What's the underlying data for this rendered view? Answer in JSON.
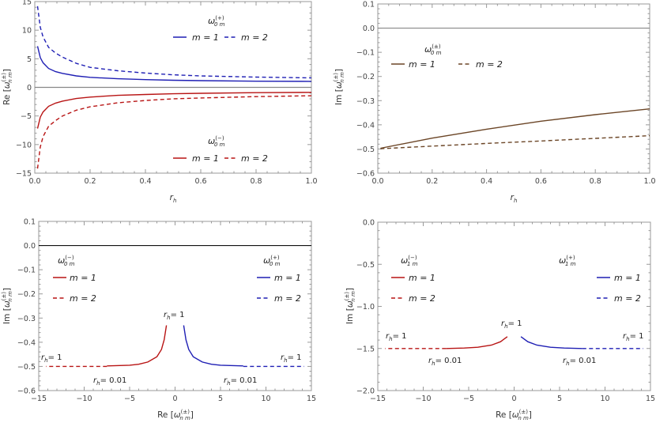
{
  "chart_data": [
    {
      "type": "line",
      "xlabel": {
        "base": "r",
        "sub": "h"
      },
      "ylabel": {
        "pre": "Re [",
        "base": "ω",
        "sup": "(±)",
        "sub": "n m",
        "post": "]"
      },
      "xlim": [
        0,
        1
      ],
      "ylim": [
        -15,
        15
      ],
      "xticks": [
        "0.0",
        "0.2",
        "0.4",
        "0.6",
        "0.8",
        "1.0"
      ],
      "yticks": [
        "−15",
        "−10",
        "−5",
        "0",
        "5",
        "10",
        "15"
      ],
      "zero_line": "#888888",
      "series": [
        {
          "name": "m = 1",
          "color": "#1f1fb4",
          "dashed": false,
          "x": [
            0.01,
            0.02,
            0.03,
            0.05,
            0.075,
            0.1,
            0.15,
            0.2,
            0.3,
            0.4,
            0.5,
            0.6,
            0.8,
            1.0
          ],
          "y": [
            7.2,
            5.2,
            4.3,
            3.3,
            2.75,
            2.45,
            2.0,
            1.75,
            1.5,
            1.35,
            1.25,
            1.17,
            1.08,
            1.05
          ]
        },
        {
          "name": "m = 2",
          "color": "#1f1fb4",
          "dashed": true,
          "x": [
            0.01,
            0.02,
            0.03,
            0.05,
            0.075,
            0.1,
            0.15,
            0.2,
            0.3,
            0.4,
            0.5,
            0.6,
            0.8,
            1.0
          ],
          "y": [
            14.2,
            10.5,
            8.8,
            7.0,
            6.0,
            5.3,
            4.2,
            3.5,
            2.9,
            2.5,
            2.2,
            2.0,
            1.8,
            1.66
          ]
        },
        {
          "name": "m = 1",
          "color": "#b81414",
          "dashed": false,
          "x": [
            0.01,
            0.02,
            0.03,
            0.05,
            0.075,
            0.1,
            0.15,
            0.2,
            0.3,
            0.4,
            0.5,
            0.6,
            0.8,
            1.0
          ],
          "y": [
            -7.2,
            -5.2,
            -4.3,
            -3.3,
            -2.75,
            -2.4,
            -1.95,
            -1.7,
            -1.4,
            -1.25,
            -1.12,
            -1.03,
            -0.93,
            -0.87
          ]
        },
        {
          "name": "m = 2",
          "color": "#b81414",
          "dashed": true,
          "x": [
            0.01,
            0.02,
            0.03,
            0.05,
            0.075,
            0.1,
            0.15,
            0.2,
            0.3,
            0.4,
            0.5,
            0.6,
            0.8,
            1.0
          ],
          "y": [
            -14.2,
            -10.4,
            -8.6,
            -6.8,
            -5.8,
            -5.0,
            -4.0,
            -3.4,
            -2.7,
            -2.3,
            -2.0,
            -1.85,
            -1.62,
            -1.47
          ]
        }
      ],
      "legends": [
        {
          "title": {
            "base": "ω",
            "sup": "(+)",
            "sub": "0 m"
          },
          "color": "#1f1fb4",
          "entries": [
            "m = 1",
            "m = 2"
          ]
        },
        {
          "title": {
            "base": "ω",
            "sup": "(−)",
            "sub": "0 m"
          },
          "color": "#b81414",
          "entries": [
            "m = 1",
            "m = 2"
          ]
        }
      ]
    },
    {
      "type": "line",
      "xlabel": {
        "base": "r",
        "sub": "h"
      },
      "ylabel": {
        "pre": "Im [",
        "base": "ω",
        "sup": "(±)",
        "sub": "n m",
        "post": "]"
      },
      "xlim": [
        0,
        1
      ],
      "ylim": [
        -0.6,
        0.1
      ],
      "xticks": [
        "0.0",
        "0.2",
        "0.4",
        "0.6",
        "0.8",
        "1.0"
      ],
      "yticks": [
        "−0.6",
        "−0.5",
        "−0.4",
        "−0.3",
        "−0.2",
        "−0.1",
        "0.0",
        "0.1"
      ],
      "zero_line": "#888888",
      "series": [
        {
          "name": "m = 1",
          "color": "#6b4526",
          "dashed": false,
          "x": [
            0.01,
            0.2,
            0.4,
            0.6,
            0.8,
            1.0
          ],
          "y": [
            -0.497,
            -0.455,
            -0.418,
            -0.385,
            -0.358,
            -0.334
          ]
        },
        {
          "name": "m = 2",
          "color": "#6b4526",
          "dashed": true,
          "x": [
            0.01,
            0.2,
            0.4,
            0.6,
            0.8,
            1.0
          ],
          "y": [
            -0.499,
            -0.488,
            -0.477,
            -0.467,
            -0.456,
            -0.445
          ]
        }
      ],
      "legends": [
        {
          "title": {
            "base": "ω",
            "sup": "(±)",
            "sub": "0 m"
          },
          "color": "#6b4526",
          "entries": [
            "m = 1",
            "m = 2"
          ]
        }
      ]
    },
    {
      "type": "line",
      "xlabel": {
        "pre": "Re [",
        "base": "ω",
        "sup": "(±)",
        "sub": "n m",
        "post": "]"
      },
      "ylabel": {
        "pre": "Im [",
        "base": "ω",
        "sup": "(±)",
        "sub": "n m",
        "post": "]"
      },
      "xlim": [
        -15,
        15
      ],
      "ylim": [
        -0.6,
        0.1
      ],
      "xticks": [
        "−15",
        "−10",
        "−5",
        "0",
        "5",
        "10",
        "15"
      ],
      "yticks": [
        "−0.6",
        "−0.5",
        "−0.4",
        "−0.3",
        "−0.2",
        "−0.1",
        "0.0",
        "0.1"
      ],
      "zero_line": "#111111",
      "series": [
        {
          "name": "m = 1",
          "color": "#b81414",
          "dashed": false,
          "x": [
            -0.95,
            -1.2,
            -1.5,
            -2,
            -3,
            -4,
            -5,
            -7.5
          ],
          "y": [
            -0.33,
            -0.39,
            -0.43,
            -0.46,
            -0.482,
            -0.491,
            -0.495,
            -0.498
          ]
        },
        {
          "name": "m = 2",
          "color": "#b81414",
          "dashed": true,
          "x": [
            -7.5,
            -14.2
          ],
          "y": [
            -0.5,
            -0.5
          ]
        },
        {
          "name": "m = 1",
          "color": "#1f1fb4",
          "dashed": false,
          "x": [
            0.95,
            1.2,
            1.5,
            2,
            3,
            4,
            5,
            7.5
          ],
          "y": [
            -0.33,
            -0.39,
            -0.43,
            -0.46,
            -0.482,
            -0.491,
            -0.495,
            -0.498
          ]
        },
        {
          "name": "m = 2",
          "color": "#1f1fb4",
          "dashed": true,
          "x": [
            7.5,
            14.2
          ],
          "y": [
            -0.5,
            -0.5
          ]
        }
      ],
      "legends": [
        {
          "title": {
            "base": "ω",
            "sup": "(−)",
            "sub": "0 m"
          },
          "color": "#b81414",
          "entries": [
            "m = 1",
            "m = 2"
          ]
        },
        {
          "title": {
            "base": "ω",
            "sup": "(+)",
            "sub": "0 m"
          },
          "color": "#1f1fb4",
          "entries": [
            "m = 1",
            "m = 2"
          ]
        }
      ],
      "annotations": [
        "= 1",
        "= 1",
        "= 1",
        "= 0.01",
        "= 0.01"
      ],
      "annotation_var": {
        "base": "r",
        "sub": "h"
      }
    },
    {
      "type": "line",
      "xlabel": {
        "pre": "Re [",
        "base": "ω",
        "sup": "(±)",
        "sub": "n m",
        "post": "]"
      },
      "ylabel": {
        "pre": "Im [",
        "base": "ω",
        "sup": "(±)",
        "sub": "n m",
        "post": "]"
      },
      "xlim": [
        -15,
        15
      ],
      "ylim": [
        -2.0,
        0.0
      ],
      "xticks": [
        "−15",
        "−10",
        "−5",
        "0",
        "5",
        "10",
        "15"
      ],
      "yticks": [
        "−2.0",
        "−1.5",
        "−1.0",
        "−0.5",
        "0.0"
      ],
      "zero_line": null,
      "series": [
        {
          "name": "m = 1",
          "color": "#b81414",
          "dashed": false,
          "x": [
            -0.75,
            -1.5,
            -2.5,
            -4,
            -5.5,
            -7.5
          ],
          "y": [
            -1.36,
            -1.42,
            -1.46,
            -1.485,
            -1.495,
            -1.5
          ]
        },
        {
          "name": "m = 2",
          "color": "#b81414",
          "dashed": true,
          "x": [
            -7.5,
            -14.2
          ],
          "y": [
            -1.5,
            -1.5
          ]
        },
        {
          "name": "m = 1",
          "color": "#1f1fb4",
          "dashed": false,
          "x": [
            0.75,
            1.5,
            2.5,
            4,
            5.5,
            7.5
          ],
          "y": [
            -1.36,
            -1.42,
            -1.46,
            -1.485,
            -1.495,
            -1.5
          ]
        },
        {
          "name": "m = 2",
          "color": "#1f1fb4",
          "dashed": true,
          "x": [
            7.5,
            14.2
          ],
          "y": [
            -1.5,
            -1.5
          ]
        }
      ],
      "legends": [
        {
          "title": {
            "base": "ω",
            "sup": "(−)",
            "sub": "1 m"
          },
          "color": "#b81414",
          "entries": [
            "m = 1",
            "m = 2"
          ]
        },
        {
          "title": {
            "base": "ω",
            "sup": "(+)",
            "sub": "1 m"
          },
          "color": "#1f1fb4",
          "entries": [
            "m = 1",
            "m = 2"
          ]
        }
      ],
      "annotations": [
        "= 1",
        "= 1",
        "= 1",
        "= 0.01",
        "= 0.01"
      ],
      "annotation_var": {
        "base": "r",
        "sub": "h"
      }
    }
  ]
}
